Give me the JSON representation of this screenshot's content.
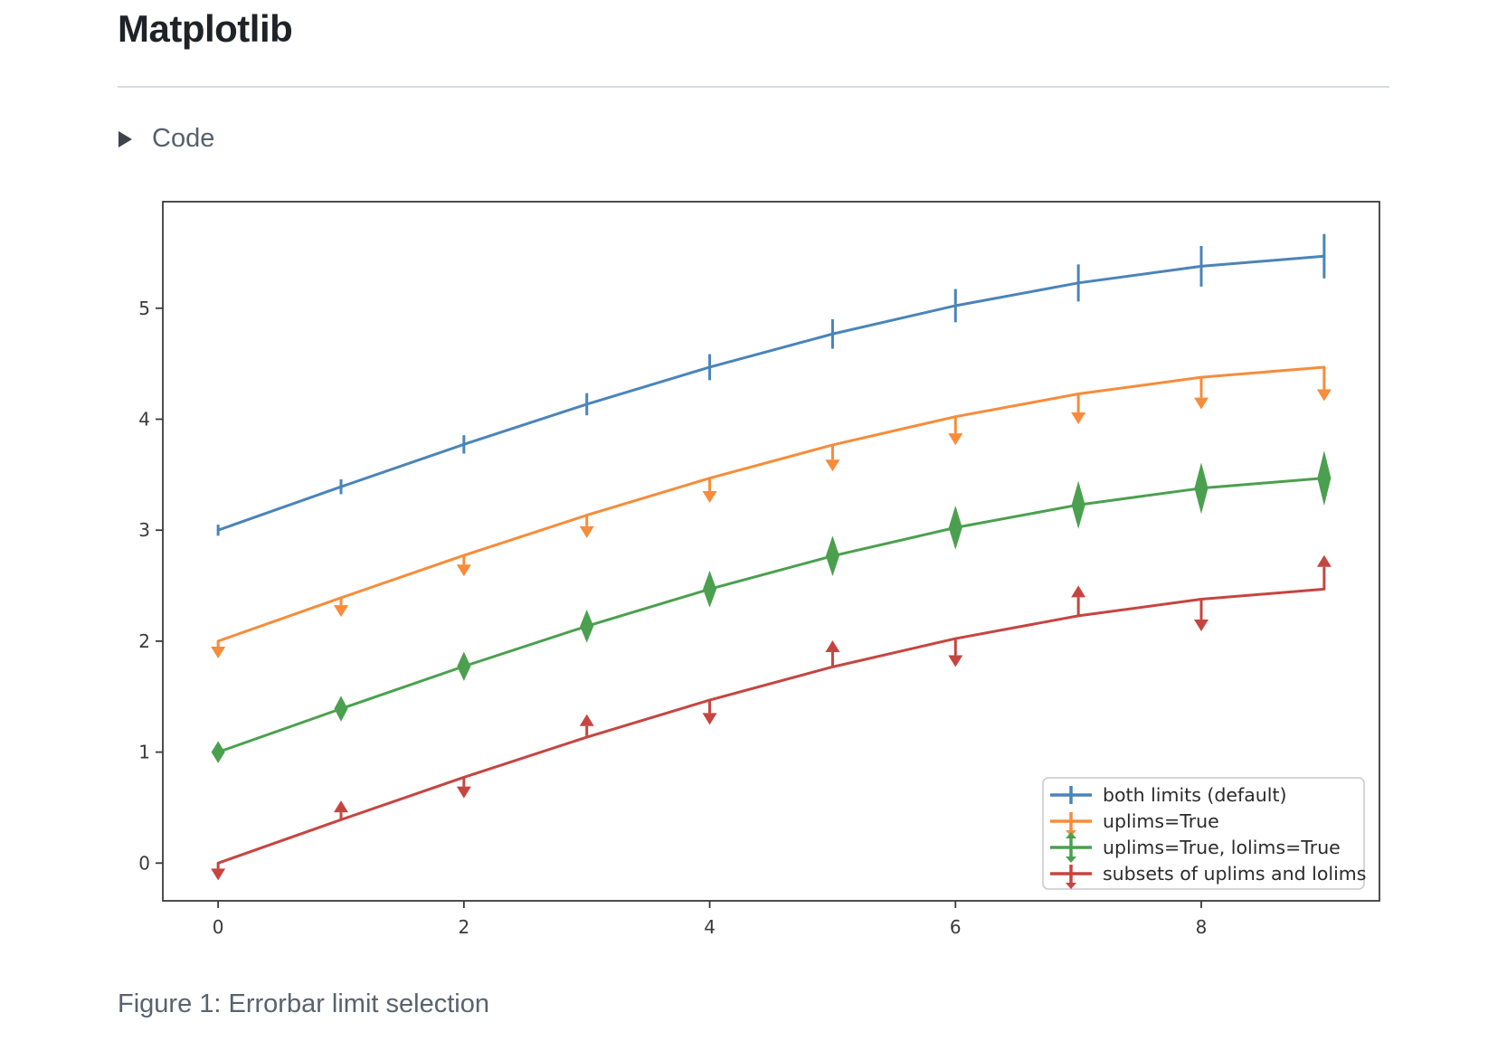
{
  "page": {
    "title": "Matplotlib",
    "code_toggle": {
      "label": "Code",
      "icon": "triangle-right-icon"
    },
    "caption": "Figure 1: Errorbar limit selection"
  },
  "chart_data": {
    "type": "line",
    "subtype": "errorbar",
    "title": "",
    "xlabel": "",
    "ylabel": "",
    "grid": false,
    "x": [
      0,
      1,
      2,
      3,
      4,
      5,
      6,
      7,
      8,
      9
    ],
    "yerr": [
      0.05,
      0.067,
      0.083,
      0.1,
      0.117,
      0.133,
      0.15,
      0.167,
      0.183,
      0.2
    ],
    "series": [
      {
        "name": "both limits (default)",
        "color": "#4a84ba",
        "values": [
          3.0,
          3.391,
          3.773,
          4.135,
          4.469,
          4.768,
          5.023,
          5.228,
          5.378,
          5.469
        ],
        "uplims": [
          0,
          0,
          0,
          0,
          0,
          0,
          0,
          0,
          0,
          0
        ],
        "lolims": [
          0,
          0,
          0,
          0,
          0,
          0,
          0,
          0,
          0,
          0
        ]
      },
      {
        "name": "uplims=True",
        "color": "#f78c3a",
        "values": [
          2.0,
          2.391,
          2.773,
          3.135,
          3.469,
          3.768,
          4.023,
          4.228,
          4.378,
          4.469
        ],
        "uplims": [
          1,
          1,
          1,
          1,
          1,
          1,
          1,
          1,
          1,
          1
        ],
        "lolims": [
          0,
          0,
          0,
          0,
          0,
          0,
          0,
          0,
          0,
          0
        ]
      },
      {
        "name": "uplims=True, lolims=True",
        "color": "#4aa04e",
        "values": [
          1.0,
          1.391,
          1.773,
          2.135,
          2.469,
          2.768,
          3.023,
          3.228,
          3.378,
          3.469
        ],
        "uplims": [
          1,
          1,
          1,
          1,
          1,
          1,
          1,
          1,
          1,
          1
        ],
        "lolims": [
          1,
          1,
          1,
          1,
          1,
          1,
          1,
          1,
          1,
          1
        ]
      },
      {
        "name": "subsets of uplims and lolims",
        "color": "#c64540",
        "values": [
          0.0,
          0.391,
          0.773,
          1.135,
          1.469,
          1.768,
          2.023,
          2.228,
          2.378,
          2.469
        ],
        "uplims": [
          1,
          0,
          1,
          0,
          1,
          0,
          1,
          0,
          1,
          0
        ],
        "lolims": [
          0,
          1,
          0,
          1,
          0,
          1,
          0,
          1,
          0,
          1
        ]
      }
    ],
    "xlim": [
      -0.45,
      9.45
    ],
    "ylim": [
      -0.34,
      5.96
    ],
    "xticks": [
      0,
      2,
      4,
      6,
      8
    ],
    "yticks": [
      0,
      1,
      2,
      3,
      4,
      5
    ],
    "axis_color": "#3a3a3a",
    "tick_label_color": "#3a3a3a",
    "legend": {
      "position": "lower right",
      "border_color": "#c9c9c9",
      "text_color": "#2b2b2b",
      "labels": [
        "both limits (default)",
        "uplims=True",
        "uplims=True, lolims=True",
        "subsets of uplims and lolims"
      ]
    }
  }
}
